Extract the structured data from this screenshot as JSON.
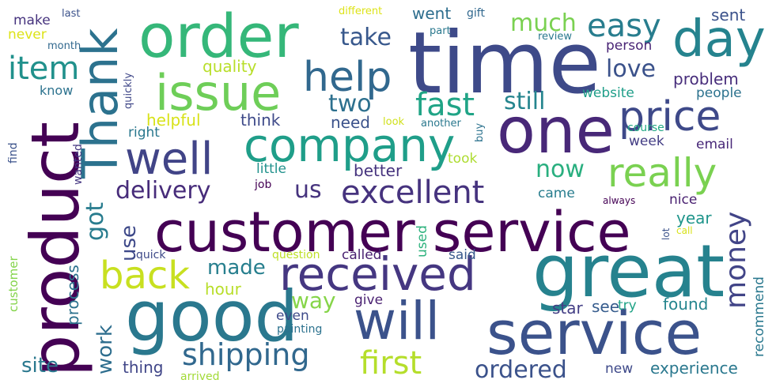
{
  "words": [
    {
      "text": "customer service",
      "color": "#440154"
    },
    {
      "text": "time",
      "color": "#3e4a89"
    },
    {
      "text": "great",
      "color": "#26828e"
    },
    {
      "text": "product",
      "color": "#440154"
    },
    {
      "text": "order",
      "color": "#35b779"
    },
    {
      "text": "good",
      "color": "#2a788e"
    },
    {
      "text": "service",
      "color": "#3b528b"
    },
    {
      "text": "one",
      "color": "#482878"
    },
    {
      "text": "company",
      "color": "#1f9e89"
    },
    {
      "text": "day",
      "color": "#25838e"
    },
    {
      "text": "Thank",
      "color": "#2c728e"
    },
    {
      "text": "issue",
      "color": "#6ece58"
    },
    {
      "text": "received",
      "color": "#453781"
    },
    {
      "text": "will",
      "color": "#3b528b"
    },
    {
      "text": "well",
      "color": "#414487"
    },
    {
      "text": "price",
      "color": "#3e4989"
    },
    {
      "text": "back",
      "color": "#c8e020"
    },
    {
      "text": "help",
      "color": "#31688e"
    },
    {
      "text": "really",
      "color": "#7ad151"
    },
    {
      "text": "first",
      "color": "#b5de2b"
    },
    {
      "text": "excellent",
      "color": "#46337e"
    },
    {
      "text": "shipping",
      "color": "#31688e"
    },
    {
      "text": "fast",
      "color": "#20a486"
    },
    {
      "text": "easy",
      "color": "#287d8e"
    },
    {
      "text": "item",
      "color": "#21918c"
    },
    {
      "text": "money",
      "color": "#414487"
    },
    {
      "text": "delivery",
      "color": "#472c7a"
    },
    {
      "text": "much",
      "color": "#7ad151"
    },
    {
      "text": "two",
      "color": "#2d708e"
    },
    {
      "text": "still",
      "color": "#25858e"
    },
    {
      "text": "now",
      "color": "#29af7f"
    },
    {
      "text": "ordered",
      "color": "#3b528b"
    },
    {
      "text": "got",
      "color": "#287c8e"
    },
    {
      "text": "take",
      "color": "#38588c"
    },
    {
      "text": "us",
      "color": "#46337e"
    },
    {
      "text": "love",
      "color": "#3b528b"
    },
    {
      "text": "way",
      "color": "#86d549"
    },
    {
      "text": "made",
      "color": "#277f8e"
    },
    {
      "text": "site",
      "color": "#2a788e"
    },
    {
      "text": "work",
      "color": "#2e6e8e"
    },
    {
      "text": "use",
      "color": "#3e4989"
    },
    {
      "text": "problem",
      "color": "#472d7b"
    },
    {
      "text": "went",
      "color": "#2e6e8e"
    },
    {
      "text": "sent",
      "color": "#3b528b"
    },
    {
      "text": "helpful",
      "color": "#d8e219"
    },
    {
      "text": "quality",
      "color": "#b8de29"
    },
    {
      "text": "process",
      "color": "#2c728e"
    },
    {
      "text": "experience",
      "color": "#2a788e"
    },
    {
      "text": "found",
      "color": "#25858e"
    },
    {
      "text": "hour",
      "color": "#b8de29"
    },
    {
      "text": "thing",
      "color": "#404688"
    },
    {
      "text": "think",
      "color": "#3e4a89"
    },
    {
      "text": "better",
      "color": "#46337e"
    },
    {
      "text": "need",
      "color": "#3b528b"
    },
    {
      "text": "website",
      "color": "#1f9e89"
    },
    {
      "text": "email",
      "color": "#482878"
    },
    {
      "text": "week",
      "color": "#433d84"
    },
    {
      "text": "year",
      "color": "#1f958b"
    },
    {
      "text": "nice",
      "color": "#481f70"
    },
    {
      "text": "came",
      "color": "#287d8e"
    },
    {
      "text": "called",
      "color": "#481f70"
    },
    {
      "text": "said",
      "color": "#38598c"
    },
    {
      "text": "give",
      "color": "#481f70"
    },
    {
      "text": "even",
      "color": "#3e4a89"
    },
    {
      "text": "star",
      "color": "#433e85"
    },
    {
      "text": "see",
      "color": "#365c8d"
    },
    {
      "text": "try",
      "color": "#20a386"
    },
    {
      "text": "new",
      "color": "#3e4989"
    },
    {
      "text": "recommend",
      "color": "#2a788e"
    },
    {
      "text": "people",
      "color": "#2c728e"
    },
    {
      "text": "person",
      "color": "#482475"
    },
    {
      "text": "make",
      "color": "#46337e"
    },
    {
      "text": "never",
      "color": "#dde318"
    },
    {
      "text": "know",
      "color": "#2c728e"
    },
    {
      "text": "right",
      "color": "#2a788e"
    },
    {
      "text": "course",
      "color": "#22a884"
    },
    {
      "text": "took",
      "color": "#addc30"
    },
    {
      "text": "job",
      "color": "#440154"
    },
    {
      "text": "little",
      "color": "#21918c"
    },
    {
      "text": "used",
      "color": "#2db27d"
    },
    {
      "text": "question",
      "color": "#bddf26"
    },
    {
      "text": "quick",
      "color": "#3e4989"
    },
    {
      "text": "painting",
      "color": "#2c728e"
    },
    {
      "text": "arrived",
      "color": "#a2da37"
    },
    {
      "text": "customer",
      "color": "#84d44b"
    },
    {
      "text": "find",
      "color": "#3b528b"
    },
    {
      "text": "wanted",
      "color": "#453781"
    },
    {
      "text": "quickly",
      "color": "#3f4788"
    },
    {
      "text": "last",
      "color": "#3b528b"
    },
    {
      "text": "month",
      "color": "#31688e"
    },
    {
      "text": "different",
      "color": "#dde318"
    },
    {
      "text": "gift",
      "color": "#31688e"
    },
    {
      "text": "part",
      "color": "#2a788e"
    },
    {
      "text": "review",
      "color": "#2a788e"
    },
    {
      "text": "look",
      "color": "#d0e11c"
    },
    {
      "text": "another",
      "color": "#2a788e"
    },
    {
      "text": "buy",
      "color": "#2c728e"
    },
    {
      "text": "always",
      "color": "#440154"
    },
    {
      "text": "lot",
      "color": "#3b528b"
    },
    {
      "text": "call",
      "color": "#d8e219"
    }
  ]
}
